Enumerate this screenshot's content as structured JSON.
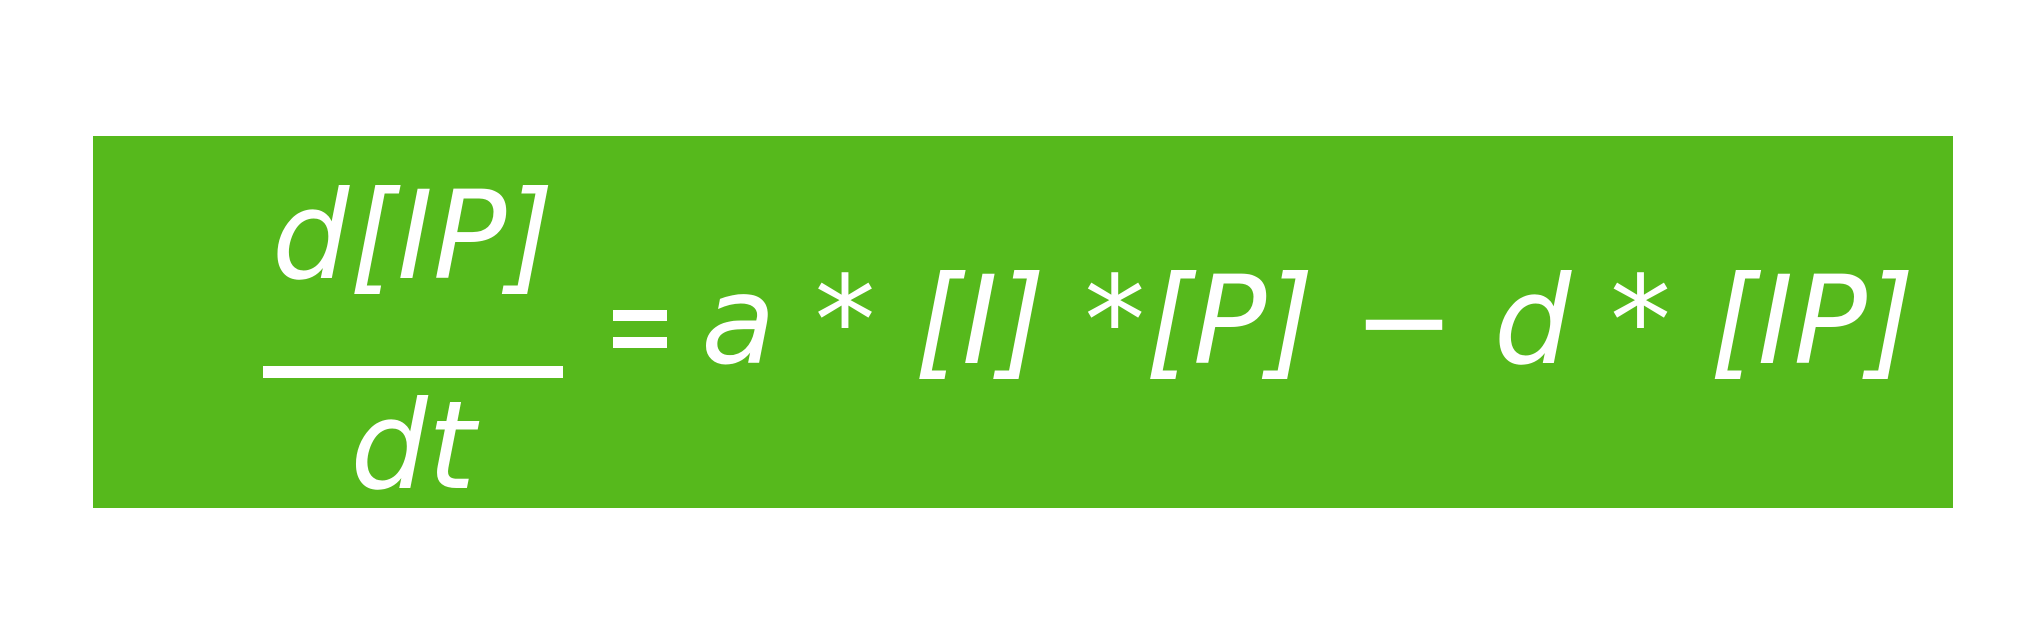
{
  "formula": {
    "numerator": "d[IP]",
    "denominator": "dt",
    "equals": "=",
    "rhs": "a * [I] *[P] − d * [IP]"
  },
  "colors": {
    "banner_background": "#56b91c",
    "text": "#ffffff",
    "page_background": "#ffffff"
  }
}
